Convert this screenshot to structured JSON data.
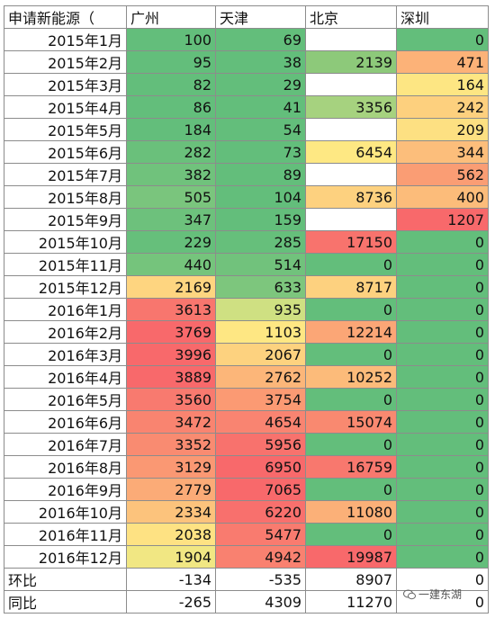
{
  "header": {
    "first": "申请新能源（",
    "cities": [
      "广州",
      "天津",
      "北京",
      "深圳"
    ]
  },
  "rows": [
    {
      "month": "2015年1月",
      "values": [
        "100",
        "69",
        "",
        "0"
      ],
      "colors": [
        "#63be7b",
        "#63be7b",
        "#ffffff",
        "#63be7b"
      ]
    },
    {
      "month": "2015年2月",
      "values": [
        "95",
        "38",
        "2139",
        "471"
      ],
      "colors": [
        "#63be7b",
        "#63be7b",
        "#8dc97a",
        "#fcb278"
      ]
    },
    {
      "month": "2015年3月",
      "values": [
        "82",
        "29",
        "",
        "164"
      ],
      "colors": [
        "#63be7b",
        "#63be7b",
        "#ffffff",
        "#fde683"
      ]
    },
    {
      "month": "2015年4月",
      "values": [
        "86",
        "41",
        "3356",
        "242"
      ],
      "colors": [
        "#63be7b",
        "#63be7b",
        "#a6d27f",
        "#fdd07e"
      ]
    },
    {
      "month": "2015年5月",
      "values": [
        "184",
        "54",
        "",
        "209"
      ],
      "colors": [
        "#63be7b",
        "#63be7b",
        "#ffffff",
        "#fde082"
      ]
    },
    {
      "month": "2015年6月",
      "values": [
        "282",
        "73",
        "6454",
        "344"
      ],
      "colors": [
        "#6ac07b",
        "#63be7b",
        "#fee883",
        "#fcbe7b"
      ]
    },
    {
      "month": "2015年7月",
      "values": [
        "382",
        "89",
        "",
        "562"
      ],
      "colors": [
        "#70c27c",
        "#63be7b",
        "#ffffff",
        "#fa9d74"
      ]
    },
    {
      "month": "2015年8月",
      "values": [
        "505",
        "104",
        "8736",
        "400"
      ],
      "colors": [
        "#7ac57d",
        "#63be7b",
        "#fdd17f",
        "#fcbc7a"
      ]
    },
    {
      "month": "2015年9月",
      "values": [
        "347",
        "159",
        "",
        "1207"
      ],
      "colors": [
        "#6dc17c",
        "#63be7b",
        "#ffffff",
        "#f8696b"
      ]
    },
    {
      "month": "2015年10月",
      "values": [
        "229",
        "285",
        "17150",
        "0"
      ],
      "colors": [
        "#66bf7b",
        "#66bf7b",
        "#f8736d",
        "#63be7b"
      ]
    },
    {
      "month": "2015年11月",
      "values": [
        "440",
        "514",
        "0",
        "0"
      ],
      "colors": [
        "#75c47c",
        "#71c27c",
        "#63be7b",
        "#63be7b"
      ]
    },
    {
      "month": "2015年12月",
      "values": [
        "2169",
        "633",
        "8717",
        "0"
      ],
      "colors": [
        "#fed580",
        "#7dc67d",
        "#fdd17f",
        "#63be7b"
      ]
    },
    {
      "month": "2016年1月",
      "values": [
        "3613",
        "935",
        "0",
        "0"
      ],
      "colors": [
        "#f8766e",
        "#cfe082",
        "#63be7b",
        "#63be7b"
      ]
    },
    {
      "month": "2016年2月",
      "values": [
        "3769",
        "1103",
        "12214",
        "0"
      ],
      "colors": [
        "#f8696b",
        "#fee783",
        "#fba676",
        "#63be7b"
      ]
    },
    {
      "month": "2016年3月",
      "values": [
        "3996",
        "2067",
        "0",
        "0"
      ],
      "colors": [
        "#f8696b",
        "#fdd27f",
        "#63be7b",
        "#63be7b"
      ]
    },
    {
      "month": "2016年4月",
      "values": [
        "3889",
        "2762",
        "10252",
        "0"
      ],
      "colors": [
        "#f8696b",
        "#fcb679",
        "#fcbb7a",
        "#63be7b"
      ]
    },
    {
      "month": "2016年5月",
      "values": [
        "3560",
        "3754",
        "0",
        "0"
      ],
      "colors": [
        "#f87a6f",
        "#fb9a73",
        "#63be7b",
        "#63be7b"
      ]
    },
    {
      "month": "2016年6月",
      "values": [
        "3472",
        "4654",
        "15074",
        "0"
      ],
      "colors": [
        "#f98470",
        "#f98471",
        "#f98970",
        "#63be7b"
      ]
    },
    {
      "month": "2016年7月",
      "values": [
        "3352",
        "5956",
        "0",
        "0"
      ],
      "colors": [
        "#f98b71",
        "#f8726d",
        "#63be7b",
        "#63be7b"
      ]
    },
    {
      "month": "2016年8月",
      "values": [
        "3129",
        "6950",
        "16759",
        "0"
      ],
      "colors": [
        "#fa9873",
        "#f8696b",
        "#f8786e",
        "#63be7b"
      ]
    },
    {
      "month": "2016年9月",
      "values": [
        "2779",
        "7065",
        "0",
        "0"
      ],
      "colors": [
        "#fbab77",
        "#f8696b",
        "#63be7b",
        "#63be7b"
      ]
    },
    {
      "month": "2016年10月",
      "values": [
        "2334",
        "6220",
        "11080",
        "0"
      ],
      "colors": [
        "#fcc37c",
        "#f8706d",
        "#fbb078",
        "#63be7b"
      ]
    },
    {
      "month": "2016年11月",
      "values": [
        "2038",
        "5477",
        "0",
        "0"
      ],
      "colors": [
        "#fee283",
        "#f97b6f",
        "#63be7b",
        "#63be7b"
      ]
    },
    {
      "month": "2016年12月",
      "values": [
        "1904",
        "4942",
        "19987",
        "0"
      ],
      "colors": [
        "#f1e783",
        "#f98170",
        "#f8696b",
        "#63be7b"
      ]
    }
  ],
  "footer": [
    {
      "label": "环比",
      "values": [
        "-134",
        "-535",
        "8907",
        "0"
      ]
    },
    {
      "label": "同比",
      "values": [
        "-265",
        "4309",
        "11270",
        "0"
      ]
    }
  ],
  "watermark": {
    "text": "一建东湖",
    "icon": "wechat-icon"
  }
}
